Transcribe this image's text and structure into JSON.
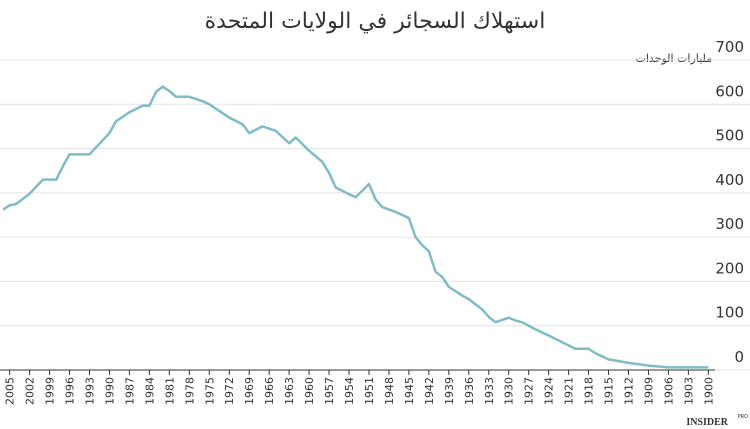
{
  "chart_data": {
    "type": "line",
    "title": "استهلاك السجائر في الولايات المتحدة",
    "y_label": "مليارات الوحدات",
    "brand": "INSIDER",
    "brand_sub": "PRO",
    "color": "#7fbcc4",
    "grid": true,
    "x": [
      2006,
      2005,
      2004,
      2002,
      2000,
      1998,
      1997,
      1996,
      1993,
      1990,
      1989,
      1987,
      1985,
      1984,
      1983,
      1982,
      1981,
      1980,
      1978,
      1976,
      1975,
      1972,
      1970,
      1969,
      1967,
      1965,
      1963,
      1962,
      1960,
      1958,
      1957,
      1956,
      1954,
      1953,
      1951,
      1950,
      1949,
      1947,
      1945,
      1944,
      1943,
      1942,
      1941,
      1940,
      1939,
      1937,
      1936,
      1934,
      1933,
      1932,
      1930,
      1929,
      1928,
      1926,
      1924,
      1922,
      1920,
      1918,
      1917,
      1915,
      1912,
      1909,
      1906,
      1903,
      1900
    ],
    "values": [
      362,
      372,
      375,
      398,
      430,
      430,
      460,
      487,
      487,
      535,
      562,
      582,
      597,
      597,
      628,
      640,
      630,
      617,
      617,
      607,
      600,
      570,
      555,
      535,
      550,
      540,
      512,
      525,
      495,
      470,
      445,
      412,
      397,
      390,
      420,
      385,
      368,
      357,
      343,
      300,
      282,
      268,
      222,
      210,
      188,
      168,
      160,
      137,
      120,
      108,
      118,
      112,
      108,
      92,
      78,
      63,
      48,
      48,
      38,
      24,
      16,
      10,
      6,
      6,
      6
    ],
    "xlim": [
      2006,
      1899
    ],
    "xticks": [
      2005,
      2002,
      1999,
      1996,
      1993,
      1990,
      1987,
      1984,
      1981,
      1978,
      1975,
      1972,
      1969,
      1966,
      1963,
      1960,
      1957,
      1954,
      1951,
      1948,
      1945,
      1942,
      1939,
      1936,
      1933,
      1930,
      1927,
      1924,
      1921,
      1918,
      1915,
      1912,
      1909,
      1906,
      1903,
      1900
    ],
    "ylim": [
      0,
      700
    ],
    "yticks": [
      0,
      100,
      200,
      300,
      400,
      500,
      600,
      700
    ]
  }
}
